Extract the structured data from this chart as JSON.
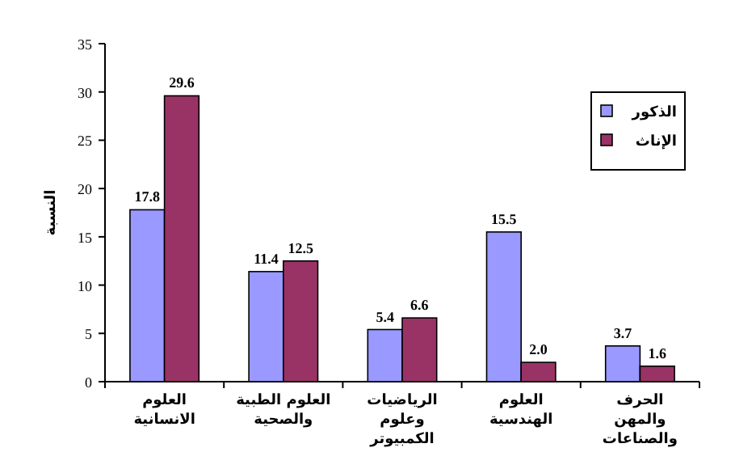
{
  "chart_data": {
    "type": "bar",
    "ylabel": "النسبة",
    "categories": [
      "العلوم الانسانية",
      "العلوم الطبية والصحية",
      "الرياضيات وعلوم الكمبيوتر",
      "العلوم الهندسية",
      "الحرف والمهن والصناعات"
    ],
    "series": [
      {
        "name": "الذكور",
        "color": "#9999ff",
        "values": [
          17.8,
          11.4,
          5.4,
          15.5,
          3.7
        ],
        "value_labels": [
          "17.8",
          "11.4",
          "5.4",
          "15.5",
          "3.7"
        ]
      },
      {
        "name": "الإناث",
        "color": "#993366",
        "values": [
          29.6,
          12.5,
          6.6,
          2.0,
          1.6
        ],
        "value_labels": [
          "29.6",
          "12.5",
          "6.6",
          "2.0",
          "1.6"
        ]
      }
    ],
    "ylim": [
      0,
      35
    ],
    "yticks": [
      0,
      5,
      10,
      15,
      20,
      25,
      30,
      35
    ],
    "grid": false,
    "legend": "top right"
  }
}
